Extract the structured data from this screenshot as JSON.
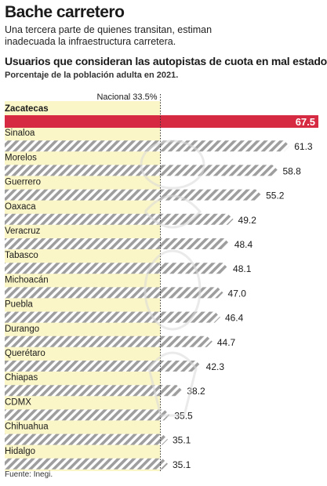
{
  "header": {
    "title": "Bache carretero",
    "subtitle": "Una tercera parte de quienes transitan, estiman inadecuada la infraestructura carretera."
  },
  "chart_data": {
    "type": "bar",
    "orientation": "horizontal",
    "title": "Usuarios que consideran las autopistas de cuota en mal estado",
    "subtitle": "Porcentaje de la población adulta en 2021.",
    "categories": [
      "Zacatecas",
      "Sinaloa",
      "Morelos",
      "Guerrero",
      "Oaxaca",
      "Veracruz",
      "Tabasco",
      "Michoacán",
      "Puebla",
      "Durango",
      "Querétaro",
      "Chiapas",
      "CDMX",
      "Chihuahua",
      "Hidalgo"
    ],
    "values": [
      67.5,
      61.3,
      58.8,
      55.2,
      49.2,
      48.4,
      48.1,
      47.0,
      46.4,
      44.7,
      42.3,
      38.2,
      35.5,
      35.1,
      35.1
    ],
    "value_labels": [
      "67.5",
      "61.3",
      "58.8",
      "55.2",
      "49.2",
      "48.4",
      "48.1",
      "47.0",
      "46.4",
      "44.7",
      "42.3",
      "38.2",
      "35.5",
      "35.1",
      "35.1"
    ],
    "highlight_category": "Zacatecas",
    "reference_line": {
      "label": "Nacional 33.5%",
      "value": 33.5
    },
    "xlim": [
      0,
      67.5
    ],
    "grid": false,
    "legend": "none"
  },
  "colors": {
    "highlight": "#d62a42",
    "bar_hatch": "#9e9e9e",
    "national_band": "#fbf6c8",
    "reference_line": "#333333"
  },
  "footer": {
    "source": "Fuente: Inegi."
  }
}
